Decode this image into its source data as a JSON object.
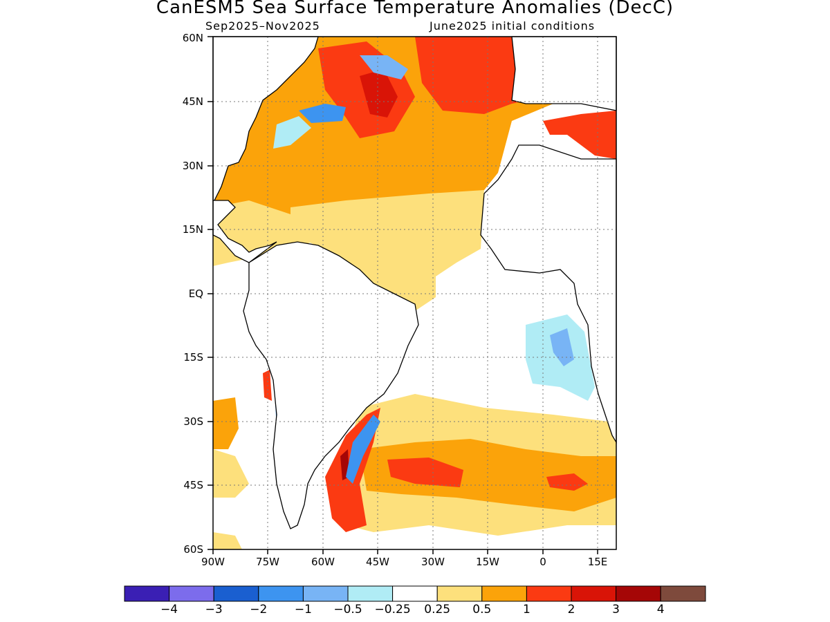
{
  "title": "CanESM5 Sea Surface Temperature Anomalies (DecC)",
  "subtitle_left": "Sep2025–Nov2025",
  "subtitle_right": "June2025 initial conditions",
  "lat_labels": [
    "60N",
    "45N",
    "30N",
    "15N",
    "EQ",
    "15S",
    "30S",
    "45S",
    "60S"
  ],
  "lon_labels": [
    "90W",
    "75W",
    "60W",
    "45W",
    "30W",
    "15W",
    "0",
    "15E"
  ],
  "map": {
    "lat_range": [
      -60,
      60
    ],
    "lon_range": [
      -90,
      20
    ],
    "land_color": "#ffffff",
    "gridlines": "dotted"
  },
  "colorbar": {
    "colors": [
      "#3a1fb4",
      "#7c6cec",
      "#1a5fd0",
      "#3d94f0",
      "#78b4f5",
      "#b0ecf5",
      "#ffffff",
      "#fde07c",
      "#fba30a",
      "#fb3a12",
      "#d91407",
      "#a50606",
      "#7e4a3c"
    ],
    "labels": [
      "−4",
      "−3",
      "−2",
      "−1",
      "−0.5",
      "−0.25",
      "0.25",
      "0.5",
      "1",
      "2",
      "3",
      "4"
    ]
  }
}
